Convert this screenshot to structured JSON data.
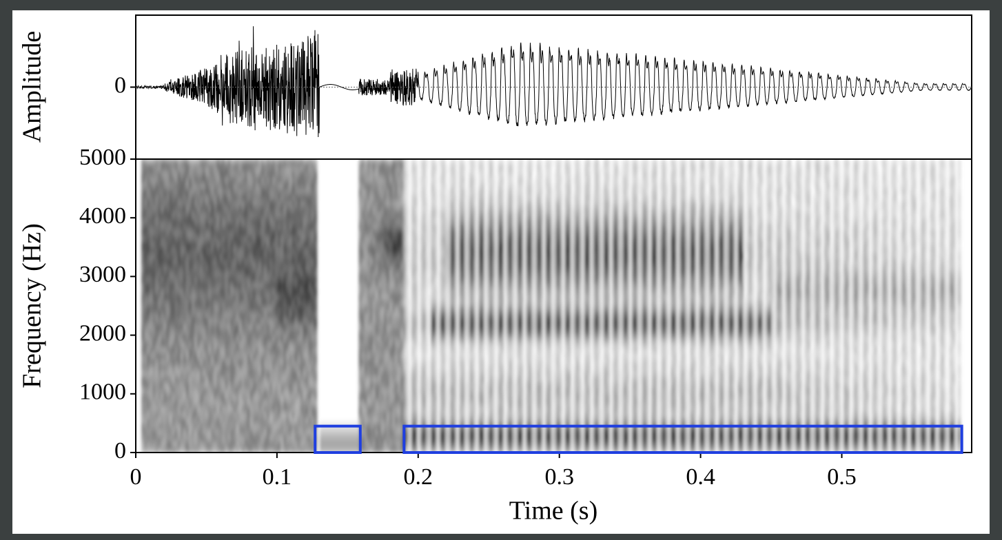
{
  "chart_data": [
    {
      "type": "waveform",
      "ylabel": "Amplitude",
      "ylim": [
        -1,
        1
      ],
      "yticks": [
        0
      ],
      "xlim": [
        0,
        0.592
      ]
    },
    {
      "type": "spectrogram",
      "xlabel": "Time (s)",
      "ylabel": "Frequency (Hz)",
      "xlim": [
        0,
        0.592
      ],
      "xticks": [
        0,
        0.1,
        0.2,
        0.3,
        0.4,
        0.5
      ],
      "ylim": [
        0,
        5000
      ],
      "yticks": [
        0,
        1000,
        2000,
        3000,
        4000,
        5000
      ],
      "regions": [
        {
          "x": [
            0.127,
            0.159
          ],
          "y": [
            0,
            450
          ]
        },
        {
          "x": [
            0.19,
            0.585
          ],
          "y": [
            0,
            450
          ]
        }
      ],
      "region_color": "#1f3fe0"
    }
  ]
}
